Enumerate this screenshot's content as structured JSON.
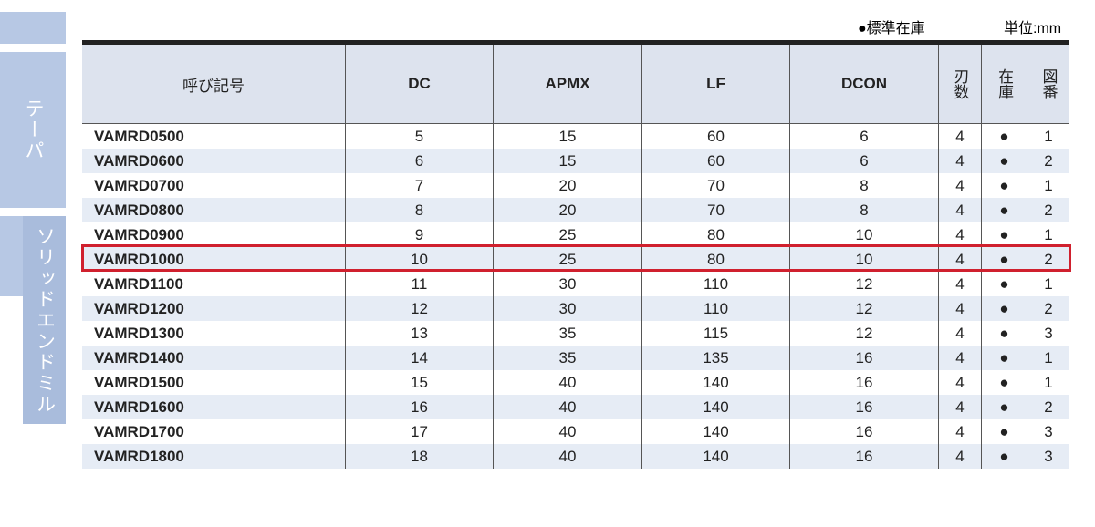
{
  "side_tabs": [
    "テーパ",
    "ソリッドエンドミル"
  ],
  "legend": {
    "stock": "●標準在庫",
    "unit": "単位:mm"
  },
  "table": {
    "header": [
      "呼び記号",
      "DC",
      "APMX",
      "LF",
      "DCON",
      "刃数",
      "在庫",
      "図番"
    ],
    "rows": [
      [
        "VAMRD0500",
        "5",
        "15",
        "60",
        "6",
        "4",
        "●",
        "1"
      ],
      [
        "VAMRD0600",
        "6",
        "15",
        "60",
        "6",
        "4",
        "●",
        "2"
      ],
      [
        "VAMRD0700",
        "7",
        "20",
        "70",
        "8",
        "4",
        "●",
        "1"
      ],
      [
        "VAMRD0800",
        "8",
        "20",
        "70",
        "8",
        "4",
        "●",
        "2"
      ],
      [
        "VAMRD0900",
        "9",
        "25",
        "80",
        "10",
        "4",
        "●",
        "1"
      ],
      [
        "VAMRD1000",
        "10",
        "25",
        "80",
        "10",
        "4",
        "●",
        "2"
      ],
      [
        "VAMRD1100",
        "11",
        "30",
        "110",
        "12",
        "4",
        "●",
        "1"
      ],
      [
        "VAMRD1200",
        "12",
        "30",
        "110",
        "12",
        "4",
        "●",
        "2"
      ],
      [
        "VAMRD1300",
        "13",
        "35",
        "115",
        "12",
        "4",
        "●",
        "3"
      ],
      [
        "VAMRD1400",
        "14",
        "35",
        "135",
        "16",
        "4",
        "●",
        "1"
      ],
      [
        "VAMRD1500",
        "15",
        "40",
        "140",
        "16",
        "4",
        "●",
        "1"
      ],
      [
        "VAMRD1600",
        "16",
        "40",
        "140",
        "16",
        "4",
        "●",
        "2"
      ],
      [
        "VAMRD1700",
        "17",
        "40",
        "140",
        "16",
        "4",
        "●",
        "3"
      ],
      [
        "VAMRD1800",
        "18",
        "40",
        "140",
        "16",
        "4",
        "●",
        "3"
      ]
    ]
  }
}
